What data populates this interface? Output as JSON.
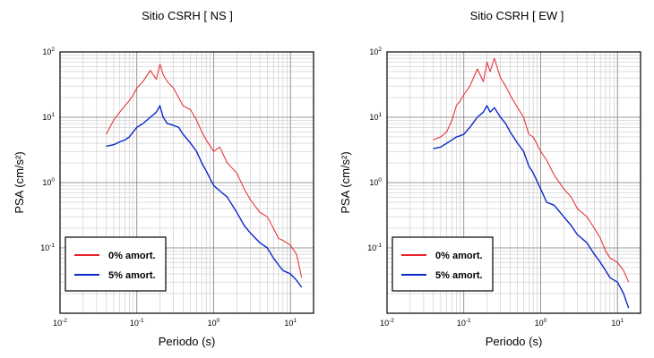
{
  "chart_data": [
    {
      "type": "line",
      "title": "Sitio CSRH [ NS ]",
      "xlabel": "Periodo (s)",
      "ylabel": "PSA (cm/s²)",
      "x_scale": "log",
      "y_scale": "log",
      "xlim": [
        0.01,
        20
      ],
      "ylim": [
        0.01,
        100
      ],
      "grid": true,
      "legend_position": "bottom-left",
      "x_ticks": [
        {
          "base": "10",
          "exp": "-2"
        },
        {
          "base": "10",
          "exp": "-1"
        },
        {
          "base": "10",
          "exp": "0"
        },
        {
          "base": "10",
          "exp": "1"
        }
      ],
      "y_ticks": [
        {
          "base": "10",
          "exp": "-1"
        },
        {
          "base": "10",
          "exp": "0"
        },
        {
          "base": "10",
          "exp": "1"
        },
        {
          "base": "10",
          "exp": "2"
        }
      ],
      "series": [
        {
          "name": "0% amort.",
          "color": "#e8242a",
          "x": [
            0.04,
            0.05,
            0.06,
            0.07,
            0.08,
            0.09,
            0.1,
            0.12,
            0.15,
            0.18,
            0.2,
            0.22,
            0.25,
            0.3,
            0.35,
            0.4,
            0.5,
            0.6,
            0.7,
            0.8,
            1.0,
            1.2,
            1.5,
            2.0,
            2.5,
            3.0,
            4.0,
            5.0,
            6.0,
            7.0,
            8.0,
            10.0,
            12.0,
            14.0
          ],
          "y": [
            5.5,
            9,
            12,
            15,
            18,
            22,
            28,
            35,
            52,
            38,
            65,
            45,
            35,
            28,
            20,
            15,
            13,
            9,
            6,
            4.5,
            3,
            3.5,
            2,
            1.4,
            0.8,
            0.55,
            0.35,
            0.3,
            0.2,
            0.14,
            0.13,
            0.11,
            0.08,
            0.035
          ]
        },
        {
          "name": "5% amort.",
          "color": "#0a28c8",
          "x": [
            0.04,
            0.05,
            0.06,
            0.07,
            0.08,
            0.09,
            0.1,
            0.12,
            0.15,
            0.18,
            0.2,
            0.22,
            0.25,
            0.3,
            0.35,
            0.4,
            0.5,
            0.6,
            0.7,
            0.8,
            1.0,
            1.2,
            1.5,
            2.0,
            2.5,
            3.0,
            4.0,
            5.0,
            6.0,
            7.0,
            8.0,
            10.0,
            12.0,
            14.0
          ],
          "y": [
            3.6,
            3.8,
            4.2,
            4.5,
            5,
            6,
            7,
            8,
            10,
            12,
            15,
            10,
            8,
            7.5,
            7,
            5.5,
            4,
            3,
            2,
            1.5,
            0.9,
            0.75,
            0.6,
            0.35,
            0.22,
            0.17,
            0.12,
            0.1,
            0.07,
            0.055,
            0.045,
            0.04,
            0.032,
            0.025
          ]
        }
      ]
    },
    {
      "type": "line",
      "title": "Sitio CSRH [ EW ]",
      "xlabel": "Periodo (s)",
      "ylabel": "PSA (cm/s²)",
      "x_scale": "log",
      "y_scale": "log",
      "xlim": [
        0.01,
        20
      ],
      "ylim": [
        0.01,
        100
      ],
      "grid": true,
      "legend_position": "bottom-left",
      "x_ticks": [
        {
          "base": "10",
          "exp": "-2"
        },
        {
          "base": "10",
          "exp": "-1"
        },
        {
          "base": "10",
          "exp": "0"
        },
        {
          "base": "10",
          "exp": "1"
        }
      ],
      "y_ticks": [
        {
          "base": "10",
          "exp": "-1"
        },
        {
          "base": "10",
          "exp": "0"
        },
        {
          "base": "10",
          "exp": "1"
        },
        {
          "base": "10",
          "exp": "2"
        }
      ],
      "series": [
        {
          "name": "0% amort.",
          "color": "#e8242a",
          "x": [
            0.04,
            0.05,
            0.06,
            0.07,
            0.08,
            0.09,
            0.1,
            0.12,
            0.15,
            0.18,
            0.2,
            0.22,
            0.25,
            0.3,
            0.35,
            0.4,
            0.5,
            0.6,
            0.7,
            0.8,
            1.0,
            1.2,
            1.5,
            2.0,
            2.5,
            3.0,
            4.0,
            5.0,
            6.0,
            7.0,
            8.0,
            10.0,
            12.0,
            14.0
          ],
          "y": [
            4.5,
            5,
            6,
            9,
            15,
            18,
            22,
            30,
            55,
            35,
            70,
            50,
            80,
            40,
            30,
            22,
            14,
            10,
            5.5,
            5,
            3,
            2.2,
            1.3,
            0.8,
            0.6,
            0.4,
            0.3,
            0.2,
            0.14,
            0.09,
            0.07,
            0.06,
            0.045,
            0.03
          ]
        },
        {
          "name": "5% amort.",
          "color": "#0a28c8",
          "x": [
            0.04,
            0.05,
            0.06,
            0.07,
            0.08,
            0.09,
            0.1,
            0.12,
            0.15,
            0.18,
            0.2,
            0.22,
            0.25,
            0.3,
            0.35,
            0.4,
            0.5,
            0.6,
            0.7,
            0.8,
            1.0,
            1.2,
            1.5,
            2.0,
            2.5,
            3.0,
            4.0,
            5.0,
            6.0,
            7.0,
            8.0,
            10.0,
            12.0,
            14.0
          ],
          "y": [
            3.3,
            3.5,
            4,
            4.5,
            5,
            5.2,
            5.5,
            7,
            10,
            12,
            15,
            12,
            14,
            10,
            8,
            6,
            4,
            3,
            1.8,
            1.4,
            0.8,
            0.5,
            0.45,
            0.3,
            0.22,
            0.16,
            0.12,
            0.08,
            0.06,
            0.045,
            0.035,
            0.03,
            0.02,
            0.012
          ]
        }
      ]
    }
  ]
}
